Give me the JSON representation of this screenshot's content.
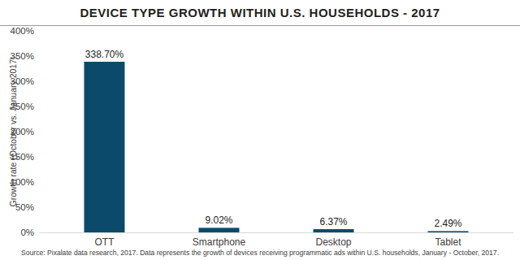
{
  "chart_data": {
    "type": "bar",
    "title": "DEVICE TYPE GROWTH WITHIN U.S. HOUSEHOLDS - 2017",
    "y_label": "Growth rate (October vs. January 2017)",
    "source": "Source: Pixalate data research, 2017. Data represents the growth of devices receiving programmatic ads within U.S. households, January - October, 2017.",
    "categories": [
      "OTT",
      "Smartphone",
      "Desktop",
      "Tablet"
    ],
    "values": [
      338.7,
      9.02,
      6.37,
      2.49
    ],
    "value_labels": [
      "338.70%",
      "9.02%",
      "6.37%",
      "2.49%"
    ],
    "color": "#0b4a6a",
    "ylim": [
      0,
      400
    ],
    "yticks": [
      {
        "value": 0,
        "label": "0%"
      },
      {
        "value": 50,
        "label": "50%"
      },
      {
        "value": 100,
        "label": "100%"
      },
      {
        "value": 150,
        "label": "150%"
      },
      {
        "value": 200,
        "label": "200%"
      },
      {
        "value": 250,
        "label": "250%"
      },
      {
        "value": 300,
        "label": "300%"
      },
      {
        "value": 350,
        "label": "350%"
      },
      {
        "value": 400,
        "label": "400%"
      }
    ],
    "grid": false,
    "data_labels": true
  }
}
